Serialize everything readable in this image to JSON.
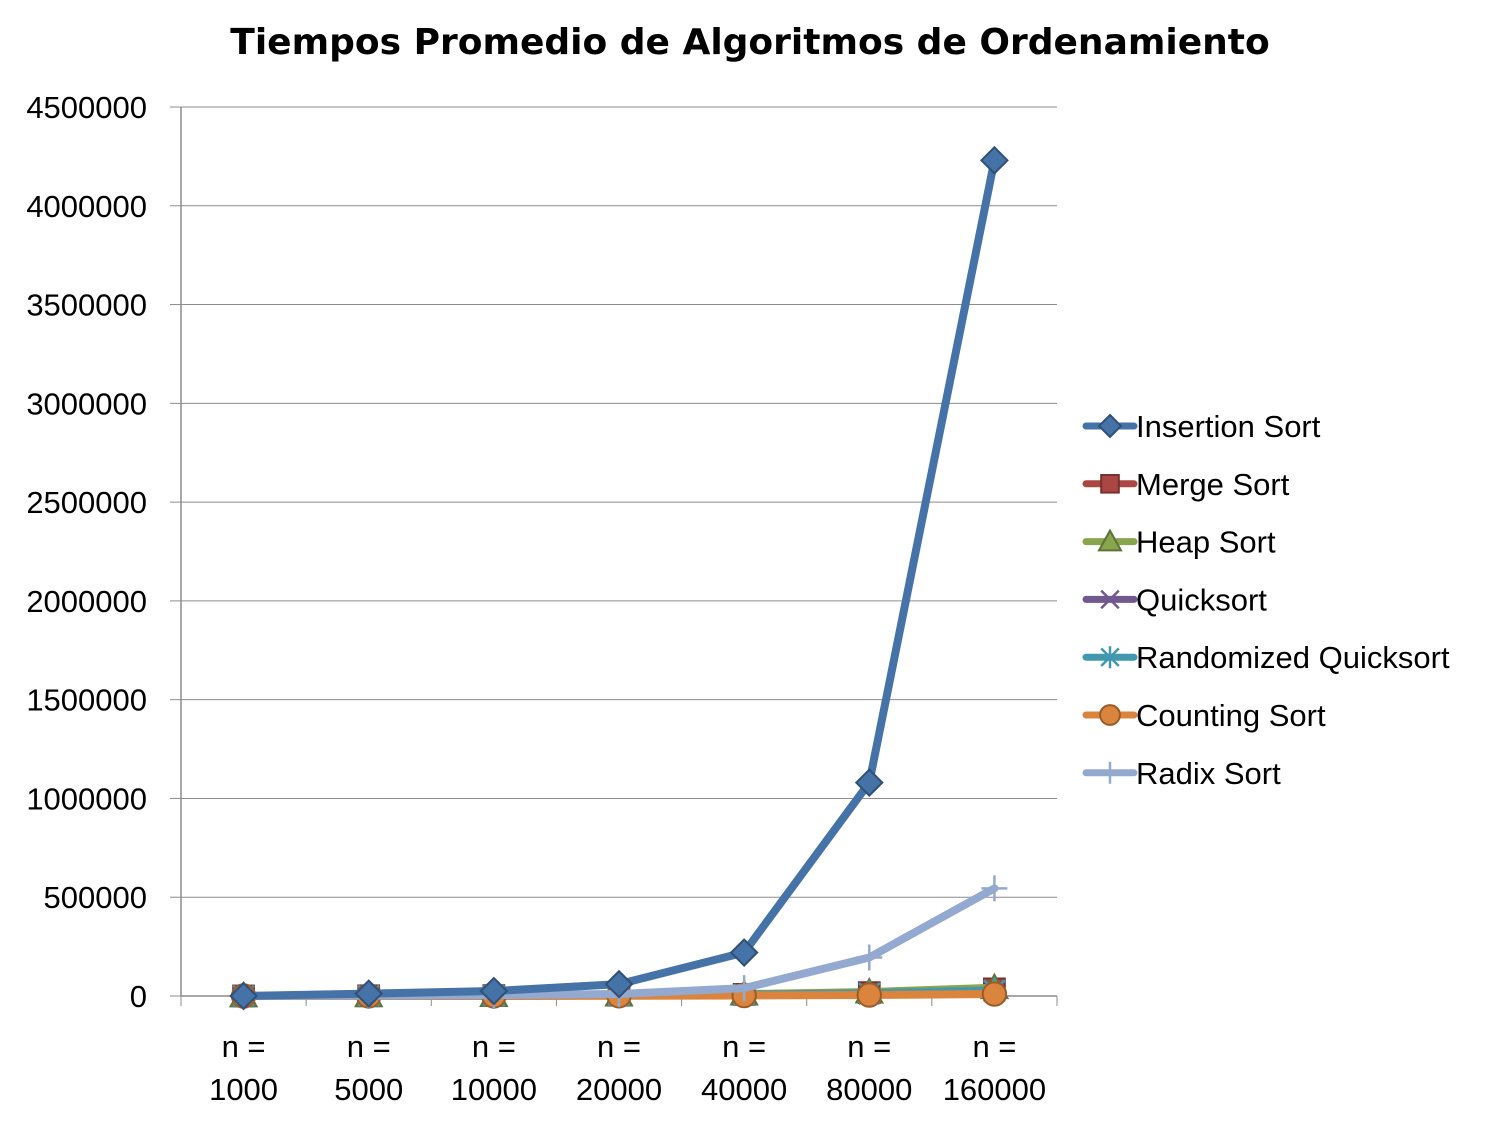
{
  "chart_data": {
    "type": "line",
    "title": "Tiempos Promedio de Algoritmos de Ordenamiento",
    "xlabel": "",
    "ylabel": "",
    "categories": [
      [
        "n =",
        "1000"
      ],
      [
        "n =",
        "5000"
      ],
      [
        "n =",
        "10000"
      ],
      [
        "n =",
        "20000"
      ],
      [
        "n =",
        "40000"
      ],
      [
        "n =",
        "80000"
      ],
      [
        "n =",
        "160000"
      ]
    ],
    "ylim": [
      0,
      4500000
    ],
    "yticks": [
      0,
      500000,
      1000000,
      1500000,
      2000000,
      2500000,
      3000000,
      3500000,
      4000000,
      4500000
    ],
    "grid": true,
    "legend_position": "right",
    "series": [
      {
        "name": "Insertion Sort",
        "color": "#4572a7",
        "marker": "diamond",
        "values": [
          500,
          12000,
          25000,
          60000,
          220000,
          1080000,
          4230000
        ]
      },
      {
        "name": "Merge Sort",
        "color": "#aa4643",
        "marker": "square",
        "values": [
          200,
          1000,
          2000,
          4000,
          8000,
          17000,
          36000
        ]
      },
      {
        "name": "Heap Sort",
        "color": "#89a54e",
        "marker": "triangle",
        "values": [
          200,
          1000,
          2000,
          4500,
          9500,
          20000,
          42000
        ]
      },
      {
        "name": "Quicksort",
        "color": "#71588f",
        "marker": "x",
        "values": [
          100,
          600,
          1200,
          2600,
          5500,
          11500,
          24000
        ]
      },
      {
        "name": "Randomized Quicksort",
        "color": "#4198af",
        "marker": "star",
        "values": [
          150,
          700,
          1400,
          3000,
          6500,
          13500,
          28000
        ]
      },
      {
        "name": "Counting Sort",
        "color": "#db843d",
        "marker": "circle",
        "values": [
          100,
          300,
          600,
          1200,
          2500,
          5000,
          10000
        ]
      },
      {
        "name": "Radix Sort",
        "color": "#93a9cf",
        "marker": "plus",
        "values": [
          400,
          2000,
          4500,
          10000,
          40000,
          195000,
          545000
        ]
      }
    ]
  }
}
